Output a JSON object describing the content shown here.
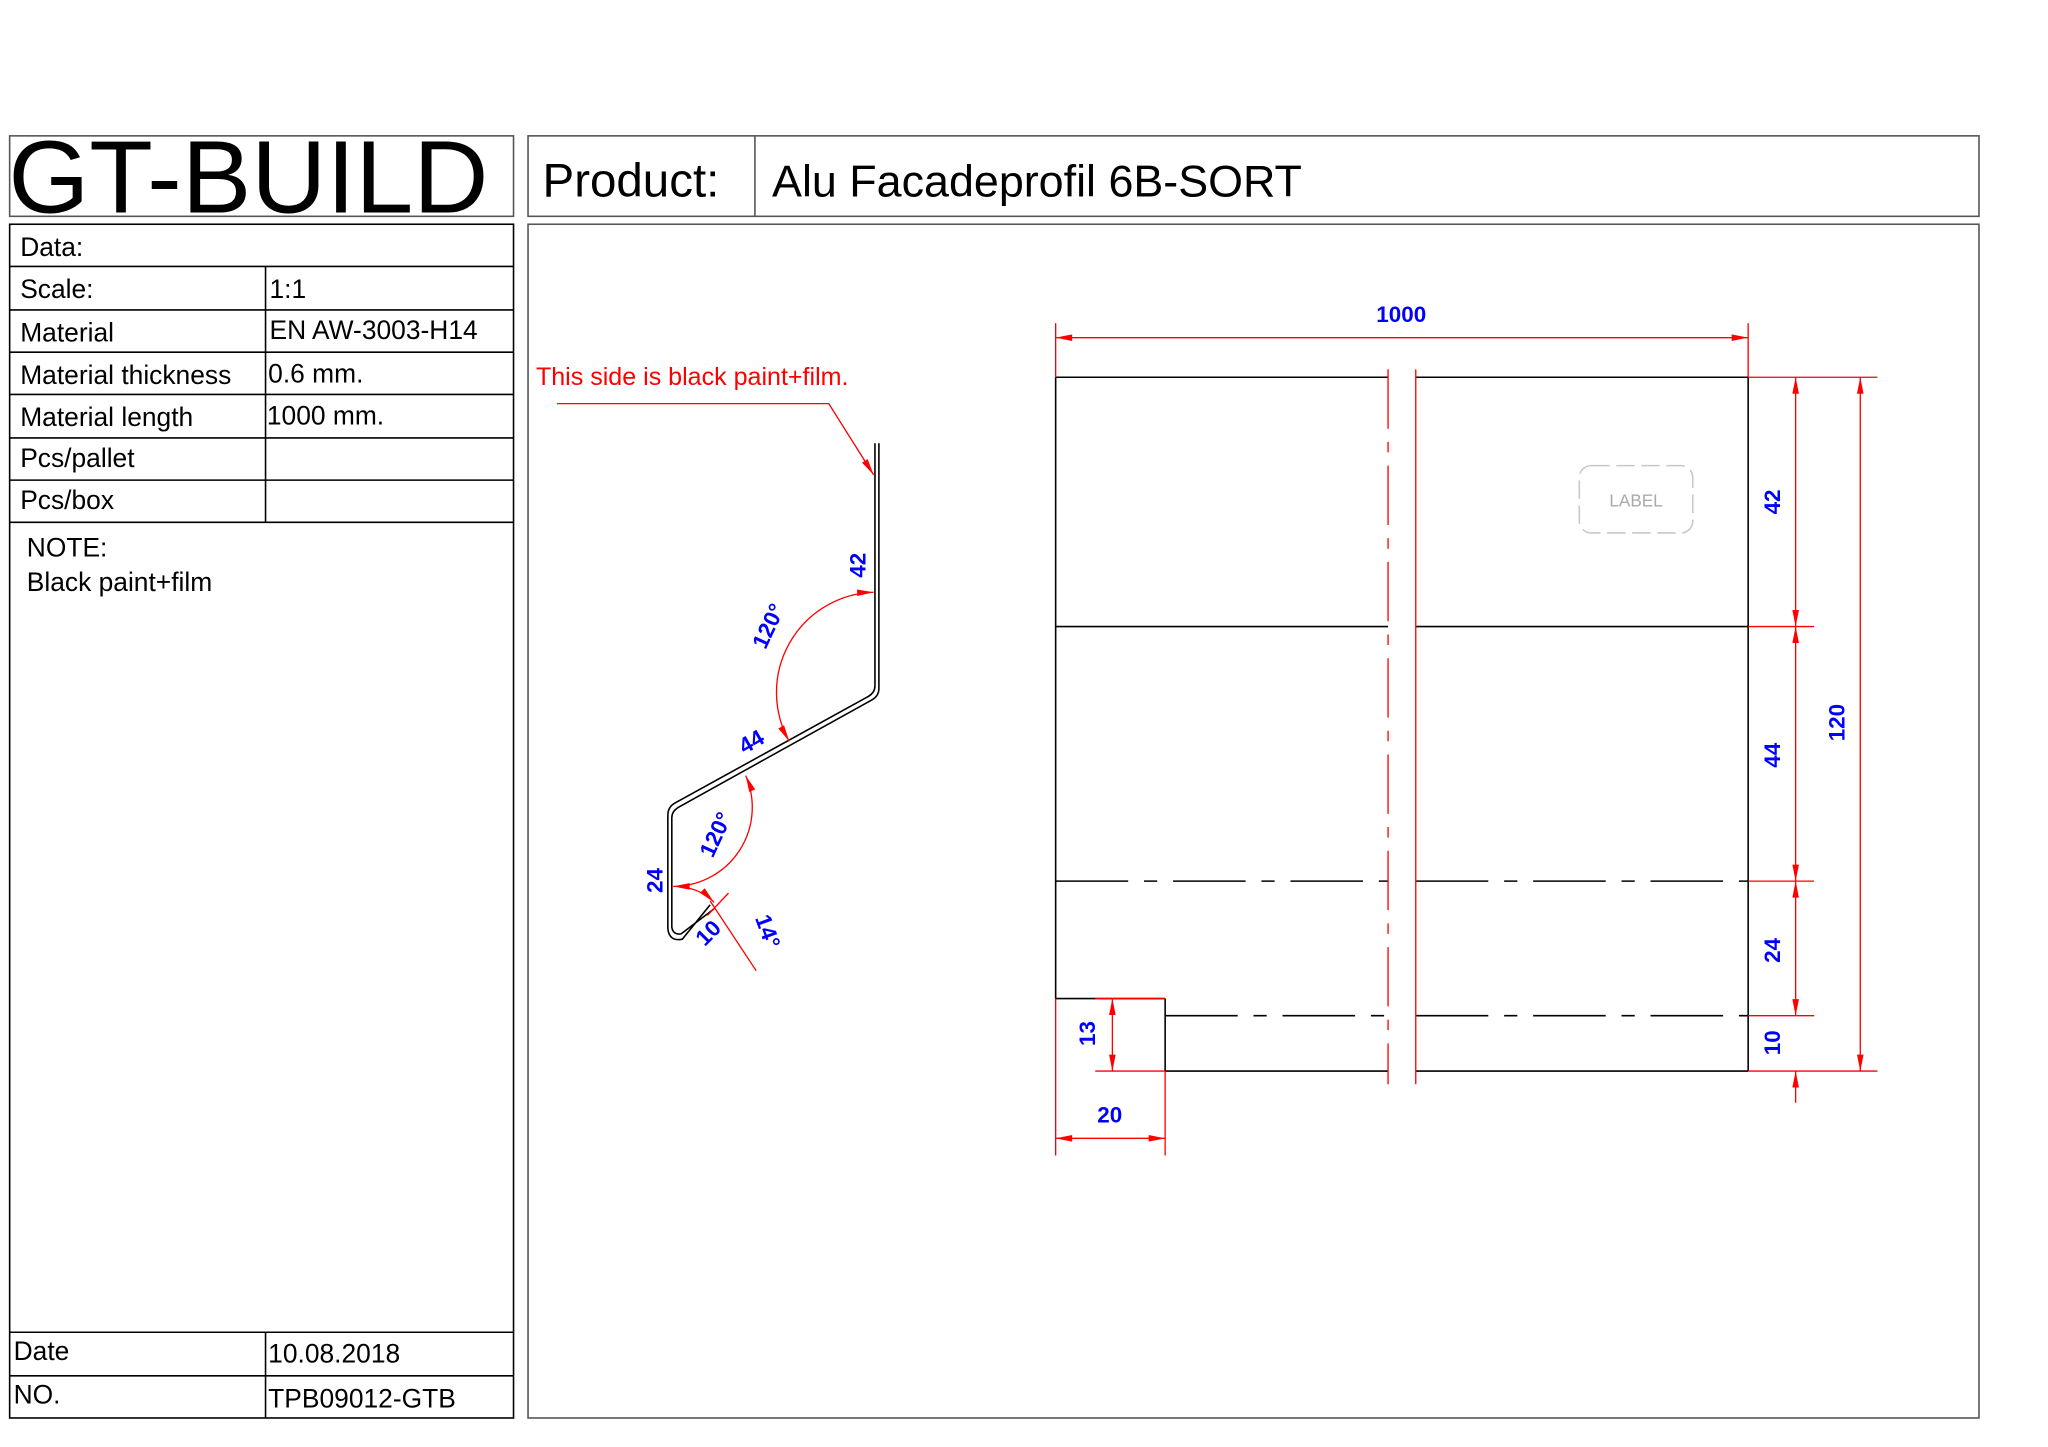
{
  "header": {
    "logo": "GT-BUILD",
    "product_label": "Product:",
    "product_name": "Alu Facadeprofil 6B-SORT"
  },
  "table": {
    "data_label": "Data:",
    "rows": [
      {
        "label": "Scale:",
        "value": "1:1"
      },
      {
        "label": "Material",
        "value": "EN AW-3003-H14"
      },
      {
        "label": "Material thickness",
        "value": "0.6 mm."
      },
      {
        "label": "Material length",
        "value": "1000 mm."
      },
      {
        "label": "Pcs/pallet",
        "value": ""
      },
      {
        "label": "Pcs/box",
        "value": ""
      }
    ],
    "note_label": "NOTE:",
    "note_text": "Black paint+film",
    "date_label": "Date",
    "date_value": "10.08.2018",
    "no_label": "NO.",
    "no_value": "TPB09012-GTB"
  },
  "drawing": {
    "callout": "This side is black paint+film.",
    "profile_dims": {
      "d42": "42",
      "d44": "44",
      "d24": "24",
      "d10": "10",
      "a1": "120°",
      "a2": "120°",
      "a3": "14°"
    },
    "front_dims": {
      "length": "1000",
      "h42": "42",
      "h44": "44",
      "h24": "24",
      "h10": "10",
      "total": "120",
      "notch_h": "13",
      "notch_w": "20"
    },
    "label_box": "LABEL",
    "colors": {
      "dimension_text": "#0000ff",
      "dimension_line": "#ff0000",
      "outline": "#000000",
      "label": "#aaaaaa"
    }
  }
}
